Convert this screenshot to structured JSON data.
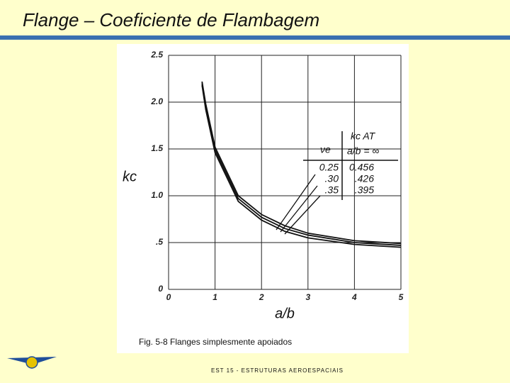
{
  "slide": {
    "title": "Flange – Coeficiente de Flambagem",
    "caption": "Fig. 5-8  Flanges simplesmente apoiados",
    "footer": "EST 15  -  ESTRUTURAS AEROESPACIAIS"
  },
  "chart_data": {
    "type": "line",
    "xlabel": "a/b",
    "ylabel": "kc",
    "x": [
      0.72,
      0.8,
      1,
      1.5,
      2,
      2.5,
      3,
      4,
      5
    ],
    "series": [
      {
        "name": "0.25",
        "color": "#111111",
        "values": [
          2.22,
          1.98,
          1.52,
          1.0,
          0.8,
          0.68,
          0.6,
          0.52,
          0.49
        ]
      },
      {
        "name": ".30",
        "color": "#111111",
        "values": [
          2.2,
          1.95,
          1.49,
          0.97,
          0.77,
          0.65,
          0.58,
          0.5,
          0.47
        ]
      },
      {
        "name": ".35",
        "color": "#111111",
        "values": [
          2.18,
          1.92,
          1.46,
          0.94,
          0.74,
          0.62,
          0.55,
          0.48,
          0.45
        ]
      }
    ],
    "annotation": {
      "nu_header": "νe",
      "k_header": "kc  AT",
      "k_subheader": "a/b = ∞",
      "k_values": [
        "0.456",
        ".426",
        ".395"
      ]
    },
    "xlim": [
      0,
      5
    ],
    "xticks": [
      0,
      1,
      2,
      3,
      4,
      5
    ],
    "ylim": [
      0,
      2.5
    ],
    "yticks": [
      0,
      {
        "value": 0.5,
        "label": ".5"
      },
      {
        "value": 1,
        "label": "1.0"
      },
      1.5,
      {
        "value": 2,
        "label": "2.0"
      },
      2.5
    ],
    "grid": true
  }
}
